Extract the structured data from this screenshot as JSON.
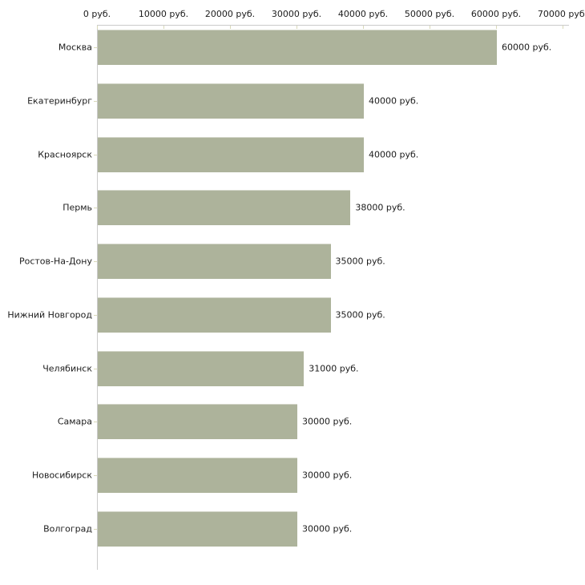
{
  "chart_data": {
    "type": "bar",
    "orientation": "horizontal",
    "title": "",
    "xlabel": "",
    "ylabel": "",
    "categories": [
      "Москва",
      "Екатеринбург",
      "Красноярск",
      "Пермь",
      "Ростов-На-Дону",
      "Нижний Новгород",
      "Челябинск",
      "Самара",
      "Новосибирск",
      "Волгоград"
    ],
    "values": [
      60000,
      40000,
      40000,
      38000,
      35000,
      35000,
      31000,
      30000,
      30000,
      30000
    ],
    "value_labels": [
      "60000 руб.",
      "40000 руб.",
      "40000 руб.",
      "38000 руб.",
      "35000 руб.",
      "35000 руб.",
      "31000 руб.",
      "30000 руб.",
      "30000 руб.",
      "30000 руб."
    ],
    "x_ticks": [
      0,
      10000,
      20000,
      30000,
      40000,
      50000,
      60000,
      70000
    ],
    "x_tick_labels": [
      "0 руб.",
      "10000 руб.",
      "20000 руб.",
      "30000 руб.",
      "40000 руб.",
      "50000 руб.",
      "60000 руб.",
      "70000 руб."
    ],
    "xlim": [
      0,
      70000
    ],
    "grid": false,
    "legend": null,
    "colors": {
      "bar_fill": "#adb39b",
      "axis_line": "#cbcbcb",
      "tick_mark": "#d9d9b9",
      "text": "#1c1c1c"
    }
  }
}
